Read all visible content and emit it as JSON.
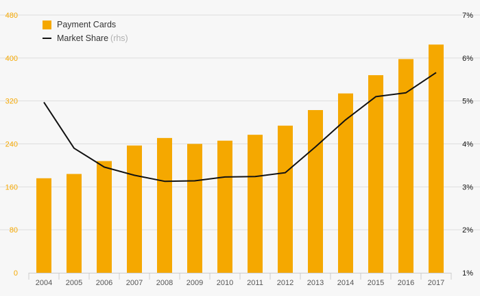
{
  "colors": {
    "bar": "#f5a800",
    "line": "#111111",
    "left_axis_text": "#f5a800",
    "right_axis_text": "#111111",
    "grid": "#dddddd",
    "background": "#f7f7f7"
  },
  "legend": {
    "bars_label": "Payment Cards",
    "line_label": "Market Share",
    "line_suffix": "(rhs)"
  },
  "chart_data": {
    "type": "bar+line",
    "categories": [
      "2004",
      "2005",
      "2006",
      "2007",
      "2008",
      "2009",
      "2010",
      "2011",
      "2012",
      "2013",
      "2014",
      "2015",
      "2016",
      "2017"
    ],
    "series": [
      {
        "name": "Payment Cards",
        "type": "bar",
        "axis": "left",
        "values": [
          176,
          184,
          208,
          237,
          251,
          240,
          246,
          257,
          274,
          303,
          334,
          368,
          398,
          425
        ]
      },
      {
        "name": "Market Share",
        "type": "line",
        "axis": "right",
        "values": [
          4.97,
          3.9,
          3.46,
          3.27,
          3.13,
          3.14,
          3.23,
          3.24,
          3.33,
          3.93,
          4.56,
          5.1,
          5.19,
          5.66
        ]
      }
    ],
    "y_left": {
      "min": 0,
      "max": 480,
      "ticks": [
        "0",
        "80",
        "160",
        "240",
        "320",
        "400",
        "480"
      ]
    },
    "y_right": {
      "min": 1,
      "max": 7,
      "ticks": [
        "1%",
        "2%",
        "3%",
        "4%",
        "5%",
        "6%",
        "7%"
      ]
    },
    "grid": true,
    "legend_position": "top-left"
  }
}
